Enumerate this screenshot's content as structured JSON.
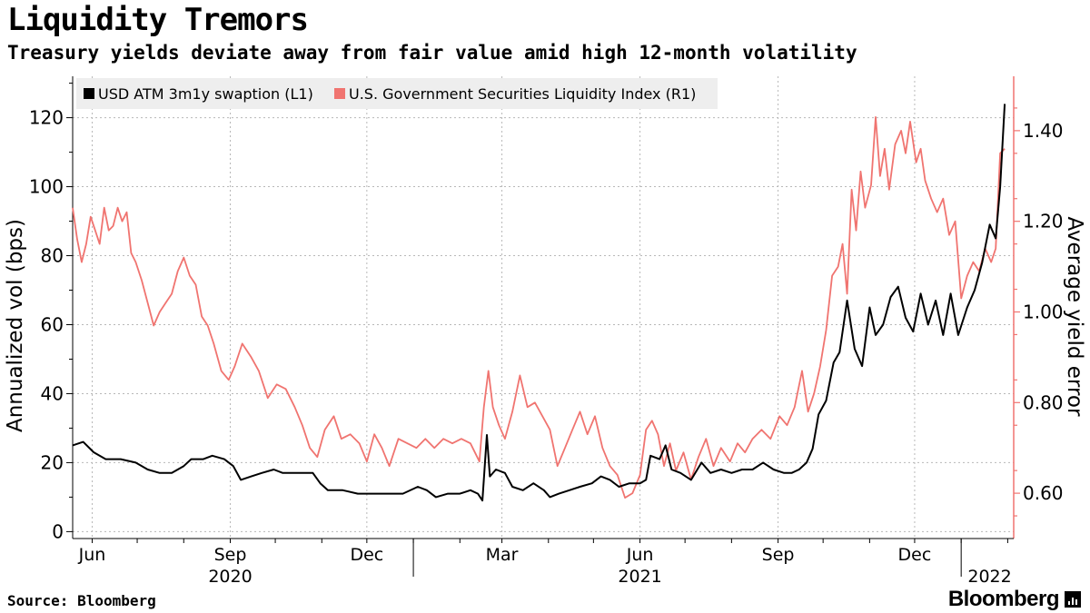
{
  "title": "Liquidity Tremors",
  "subtitle": "Treasury yields deviate away from fair value amid high 12-month volatility",
  "source": "Source: Bloomberg",
  "brand": "Bloomberg",
  "chart_data": {
    "type": "line",
    "legend": {
      "placement": "top-left",
      "entries": [
        "USD ATM 3m1y swaption (L1)",
        "U.S. Government Securities Liquidity Index (R1)"
      ]
    },
    "y_left": {
      "label": "Annualized vol (bps)",
      "range": [
        -2,
        132
      ],
      "ticks": [
        0,
        20,
        40,
        60,
        80,
        100,
        120
      ]
    },
    "y_right": {
      "label": "Average yield error",
      "range": [
        0.5,
        1.52
      ],
      "ticks": [
        0.6,
        0.8,
        1.0,
        1.2,
        1.4
      ],
      "tick_labels": [
        "0.60",
        "0.80",
        "1.00",
        "1.20",
        "1.40"
      ]
    },
    "x": {
      "range": [
        "2020-05-19",
        "2022-02-05"
      ],
      "month_ticks": [
        {
          "date": "2020-06-01",
          "label": "Jun"
        },
        {
          "date": "2020-09-01",
          "label": "Sep"
        },
        {
          "date": "2020-12-01",
          "label": "Dec"
        },
        {
          "date": "2021-03-01",
          "label": "Mar"
        },
        {
          "date": "2021-06-01",
          "label": "Jun"
        },
        {
          "date": "2021-09-01",
          "label": "Sep"
        },
        {
          "date": "2021-12-01",
          "label": "Dec"
        }
      ],
      "year_labels": [
        {
          "date": "2020-09-01",
          "label": "2020"
        },
        {
          "date": "2021-06-01",
          "label": "2021"
        },
        {
          "date": "2022-01-20",
          "label": "2022"
        }
      ],
      "gridlines": [
        "2020-06-01",
        "2020-09-01",
        "2020-12-01",
        "2021-03-01",
        "2021-06-01",
        "2021-09-01",
        "2021-12-01"
      ]
    },
    "grid": true,
    "series": [
      {
        "name": "USD ATM 3m1y swaption (L1)",
        "axis": "left",
        "color": "#000000",
        "points": [
          [
            "2020-05-19",
            25
          ],
          [
            "2020-05-26",
            26
          ],
          [
            "2020-06-02",
            23
          ],
          [
            "2020-06-10",
            21
          ],
          [
            "2020-06-20",
            21
          ],
          [
            "2020-06-30",
            20
          ],
          [
            "2020-07-08",
            18
          ],
          [
            "2020-07-16",
            17
          ],
          [
            "2020-07-24",
            17
          ],
          [
            "2020-08-01",
            19
          ],
          [
            "2020-08-06",
            21
          ],
          [
            "2020-08-14",
            21
          ],
          [
            "2020-08-20",
            22
          ],
          [
            "2020-08-28",
            21
          ],
          [
            "2020-09-03",
            19
          ],
          [
            "2020-09-08",
            15
          ],
          [
            "2020-09-15",
            16
          ],
          [
            "2020-09-22",
            17
          ],
          [
            "2020-09-30",
            18
          ],
          [
            "2020-10-06",
            17
          ],
          [
            "2020-10-14",
            17
          ],
          [
            "2020-10-20",
            17
          ],
          [
            "2020-10-26",
            17
          ],
          [
            "2020-10-31",
            14
          ],
          [
            "2020-11-05",
            12
          ],
          [
            "2020-11-15",
            12
          ],
          [
            "2020-11-25",
            11
          ],
          [
            "2020-12-05",
            11
          ],
          [
            "2020-12-15",
            11
          ],
          [
            "2020-12-25",
            11
          ],
          [
            "2021-01-04",
            13
          ],
          [
            "2021-01-10",
            12
          ],
          [
            "2021-01-16",
            10
          ],
          [
            "2021-01-24",
            11
          ],
          [
            "2021-02-01",
            11
          ],
          [
            "2021-02-08",
            12
          ],
          [
            "2021-02-13",
            11
          ],
          [
            "2021-02-16",
            9
          ],
          [
            "2021-02-19",
            28
          ],
          [
            "2021-02-21",
            16
          ],
          [
            "2021-02-25",
            18
          ],
          [
            "2021-03-03",
            17
          ],
          [
            "2021-03-08",
            13
          ],
          [
            "2021-03-15",
            12
          ],
          [
            "2021-03-22",
            14
          ],
          [
            "2021-03-29",
            12
          ],
          [
            "2021-04-02",
            10
          ],
          [
            "2021-04-08",
            11
          ],
          [
            "2021-04-15",
            12
          ],
          [
            "2021-04-22",
            13
          ],
          [
            "2021-04-30",
            14
          ],
          [
            "2021-05-06",
            16
          ],
          [
            "2021-05-12",
            15
          ],
          [
            "2021-05-18",
            13
          ],
          [
            "2021-05-25",
            14
          ],
          [
            "2021-06-01",
            14
          ],
          [
            "2021-06-05",
            15
          ],
          [
            "2021-06-08",
            22
          ],
          [
            "2021-06-14",
            21
          ],
          [
            "2021-06-18",
            25
          ],
          [
            "2021-06-22",
            18
          ],
          [
            "2021-06-28",
            17
          ],
          [
            "2021-07-05",
            15
          ],
          [
            "2021-07-12",
            20
          ],
          [
            "2021-07-18",
            17
          ],
          [
            "2021-07-25",
            18
          ],
          [
            "2021-08-01",
            17
          ],
          [
            "2021-08-08",
            18
          ],
          [
            "2021-08-15",
            18
          ],
          [
            "2021-08-22",
            20
          ],
          [
            "2021-08-29",
            18
          ],
          [
            "2021-09-05",
            17
          ],
          [
            "2021-09-10",
            17
          ],
          [
            "2021-09-15",
            18
          ],
          [
            "2021-09-20",
            20
          ],
          [
            "2021-09-24",
            24
          ],
          [
            "2021-09-28",
            34
          ],
          [
            "2021-10-03",
            38
          ],
          [
            "2021-10-08",
            49
          ],
          [
            "2021-10-12",
            52
          ],
          [
            "2021-10-17",
            67
          ],
          [
            "2021-10-22",
            53
          ],
          [
            "2021-10-27",
            48
          ],
          [
            "2021-11-01",
            65
          ],
          [
            "2021-11-05",
            57
          ],
          [
            "2021-11-10",
            60
          ],
          [
            "2021-11-15",
            68
          ],
          [
            "2021-11-20",
            71
          ],
          [
            "2021-11-25",
            62
          ],
          [
            "2021-11-30",
            58
          ],
          [
            "2021-12-05",
            69
          ],
          [
            "2021-12-10",
            60
          ],
          [
            "2021-12-15",
            67
          ],
          [
            "2021-12-20",
            57
          ],
          [
            "2021-12-25",
            69
          ],
          [
            "2021-12-30",
            57
          ],
          [
            "2022-01-05",
            65
          ],
          [
            "2022-01-10",
            70
          ],
          [
            "2022-01-15",
            78
          ],
          [
            "2022-01-20",
            89
          ],
          [
            "2022-01-24",
            85
          ],
          [
            "2022-01-27",
            100
          ],
          [
            "2022-01-30",
            124
          ]
        ]
      },
      {
        "name": "U.S. Government Securities Liquidity Index (R1)",
        "axis": "right",
        "color": "#f07470",
        "points": [
          [
            "2020-05-19",
            1.23
          ],
          [
            "2020-05-22",
            1.16
          ],
          [
            "2020-05-25",
            1.11
          ],
          [
            "2020-05-28",
            1.15
          ],
          [
            "2020-05-31",
            1.21
          ],
          [
            "2020-06-03",
            1.18
          ],
          [
            "2020-06-06",
            1.15
          ],
          [
            "2020-06-09",
            1.23
          ],
          [
            "2020-06-12",
            1.18
          ],
          [
            "2020-06-15",
            1.19
          ],
          [
            "2020-06-18",
            1.23
          ],
          [
            "2020-06-21",
            1.2
          ],
          [
            "2020-06-24",
            1.22
          ],
          [
            "2020-06-27",
            1.13
          ],
          [
            "2020-06-30",
            1.11
          ],
          [
            "2020-07-04",
            1.07
          ],
          [
            "2020-07-08",
            1.02
          ],
          [
            "2020-07-12",
            0.97
          ],
          [
            "2020-07-16",
            1.0
          ],
          [
            "2020-07-20",
            1.02
          ],
          [
            "2020-07-24",
            1.04
          ],
          [
            "2020-07-28",
            1.09
          ],
          [
            "2020-08-01",
            1.12
          ],
          [
            "2020-08-05",
            1.08
          ],
          [
            "2020-08-09",
            1.06
          ],
          [
            "2020-08-13",
            0.99
          ],
          [
            "2020-08-17",
            0.97
          ],
          [
            "2020-08-21",
            0.93
          ],
          [
            "2020-08-26",
            0.87
          ],
          [
            "2020-08-31",
            0.85
          ],
          [
            "2020-09-04",
            0.88
          ],
          [
            "2020-09-09",
            0.93
          ],
          [
            "2020-09-15",
            0.9
          ],
          [
            "2020-09-20",
            0.87
          ],
          [
            "2020-09-26",
            0.81
          ],
          [
            "2020-10-02",
            0.84
          ],
          [
            "2020-10-08",
            0.83
          ],
          [
            "2020-10-14",
            0.79
          ],
          [
            "2020-10-19",
            0.75
          ],
          [
            "2020-10-24",
            0.7
          ],
          [
            "2020-10-29",
            0.68
          ],
          [
            "2020-11-03",
            0.74
          ],
          [
            "2020-11-09",
            0.77
          ],
          [
            "2020-11-14",
            0.72
          ],
          [
            "2020-11-20",
            0.73
          ],
          [
            "2020-11-26",
            0.71
          ],
          [
            "2020-12-01",
            0.67
          ],
          [
            "2020-12-06",
            0.73
          ],
          [
            "2020-12-11",
            0.7
          ],
          [
            "2020-12-16",
            0.66
          ],
          [
            "2020-12-22",
            0.72
          ],
          [
            "2020-12-28",
            0.71
          ],
          [
            "2021-01-03",
            0.7
          ],
          [
            "2021-01-09",
            0.72
          ],
          [
            "2021-01-15",
            0.7
          ],
          [
            "2021-01-21",
            0.72
          ],
          [
            "2021-01-27",
            0.71
          ],
          [
            "2021-02-02",
            0.72
          ],
          [
            "2021-02-08",
            0.71
          ],
          [
            "2021-02-14",
            0.67
          ],
          [
            "2021-02-17",
            0.79
          ],
          [
            "2021-02-20",
            0.87
          ],
          [
            "2021-02-23",
            0.79
          ],
          [
            "2021-02-27",
            0.75
          ],
          [
            "2021-03-03",
            0.72
          ],
          [
            "2021-03-08",
            0.78
          ],
          [
            "2021-03-13",
            0.86
          ],
          [
            "2021-03-18",
            0.79
          ],
          [
            "2021-03-23",
            0.8
          ],
          [
            "2021-03-28",
            0.77
          ],
          [
            "2021-04-02",
            0.74
          ],
          [
            "2021-04-07",
            0.66
          ],
          [
            "2021-04-12",
            0.7
          ],
          [
            "2021-04-17",
            0.74
          ],
          [
            "2021-04-22",
            0.78
          ],
          [
            "2021-04-27",
            0.73
          ],
          [
            "2021-05-02",
            0.77
          ],
          [
            "2021-05-07",
            0.7
          ],
          [
            "2021-05-12",
            0.66
          ],
          [
            "2021-05-17",
            0.64
          ],
          [
            "2021-05-22",
            0.59
          ],
          [
            "2021-05-27",
            0.6
          ],
          [
            "2021-06-01",
            0.64
          ],
          [
            "2021-06-05",
            0.74
          ],
          [
            "2021-06-09",
            0.76
          ],
          [
            "2021-06-13",
            0.73
          ],
          [
            "2021-06-17",
            0.66
          ],
          [
            "2021-06-21",
            0.71
          ],
          [
            "2021-06-25",
            0.65
          ],
          [
            "2021-06-30",
            0.69
          ],
          [
            "2021-07-05",
            0.63
          ],
          [
            "2021-07-10",
            0.68
          ],
          [
            "2021-07-15",
            0.72
          ],
          [
            "2021-07-20",
            0.66
          ],
          [
            "2021-07-25",
            0.7
          ],
          [
            "2021-07-31",
            0.67
          ],
          [
            "2021-08-05",
            0.71
          ],
          [
            "2021-08-10",
            0.69
          ],
          [
            "2021-08-15",
            0.72
          ],
          [
            "2021-08-21",
            0.74
          ],
          [
            "2021-08-27",
            0.72
          ],
          [
            "2021-09-02",
            0.77
          ],
          [
            "2021-09-07",
            0.75
          ],
          [
            "2021-09-12",
            0.79
          ],
          [
            "2021-09-17",
            0.87
          ],
          [
            "2021-09-21",
            0.78
          ],
          [
            "2021-09-25",
            0.82
          ],
          [
            "2021-09-29",
            0.88
          ],
          [
            "2021-10-03",
            0.96
          ],
          [
            "2021-10-07",
            1.08
          ],
          [
            "2021-10-11",
            1.1
          ],
          [
            "2021-10-14",
            1.15
          ],
          [
            "2021-10-17",
            1.04
          ],
          [
            "2021-10-20",
            1.27
          ],
          [
            "2021-10-23",
            1.18
          ],
          [
            "2021-10-26",
            1.31
          ],
          [
            "2021-10-29",
            1.23
          ],
          [
            "2021-11-02",
            1.28
          ],
          [
            "2021-11-05",
            1.43
          ],
          [
            "2021-11-08",
            1.3
          ],
          [
            "2021-11-11",
            1.36
          ],
          [
            "2021-11-14",
            1.27
          ],
          [
            "2021-11-18",
            1.37
          ],
          [
            "2021-11-22",
            1.4
          ],
          [
            "2021-11-25",
            1.35
          ],
          [
            "2021-11-28",
            1.42
          ],
          [
            "2021-12-02",
            1.33
          ],
          [
            "2021-12-05",
            1.36
          ],
          [
            "2021-12-08",
            1.29
          ],
          [
            "2021-12-12",
            1.25
          ],
          [
            "2021-12-16",
            1.22
          ],
          [
            "2021-12-20",
            1.25
          ],
          [
            "2021-12-24",
            1.17
          ],
          [
            "2021-12-28",
            1.2
          ],
          [
            "2022-01-01",
            1.03
          ],
          [
            "2022-01-05",
            1.08
          ],
          [
            "2022-01-09",
            1.11
          ],
          [
            "2022-01-13",
            1.09
          ],
          [
            "2022-01-17",
            1.14
          ],
          [
            "2022-01-21",
            1.11
          ],
          [
            "2022-01-24",
            1.14
          ],
          [
            "2022-01-27",
            1.35
          ],
          [
            "2022-01-30",
            1.36
          ]
        ]
      }
    ]
  }
}
